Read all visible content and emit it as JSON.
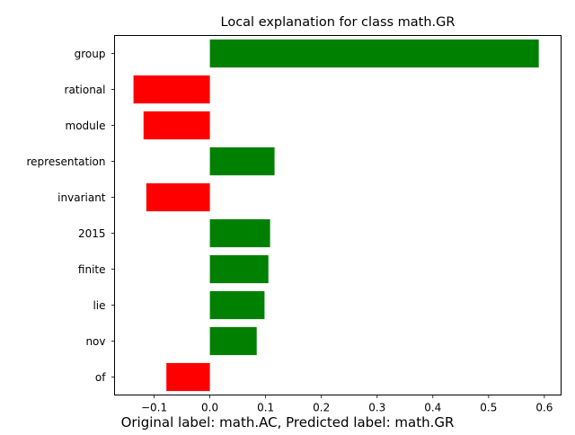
{
  "chart_data": {
    "type": "bar",
    "orientation": "horizontal",
    "title": "Local explanation for class math.GR",
    "caption": "Original label: math.AC, Predicted label: math.GR",
    "xlabel": "",
    "ylabel": "",
    "categories": [
      "group",
      "rational",
      "module",
      "representation",
      "invariant",
      "2015",
      "finite",
      "lie",
      "nov",
      "of"
    ],
    "values": [
      0.59,
      -0.137,
      -0.119,
      0.116,
      -0.114,
      0.108,
      0.105,
      0.098,
      0.084,
      -0.078
    ],
    "xlim": [
      -0.171,
      0.63
    ],
    "xticks": [
      -0.1,
      0.0,
      0.1,
      0.2,
      0.3,
      0.4,
      0.5,
      0.6
    ],
    "xtick_labels": [
      "−0.1",
      "0.0",
      "0.1",
      "0.2",
      "0.3",
      "0.4",
      "0.5",
      "0.6"
    ],
    "grid": false,
    "colors": {
      "positive": "#008000",
      "negative": "#ff0000",
      "axis": "#000000"
    }
  }
}
